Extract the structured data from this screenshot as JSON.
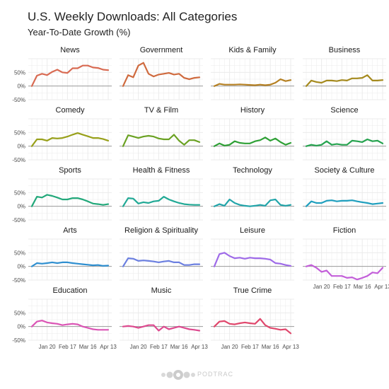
{
  "title": "U.S. Weekly Downloads: All Categories",
  "subtitle": "Year-To-Date Growth (%)",
  "logo_text": "PODTRAC",
  "colors": {
    "grid": "#ebebeb",
    "zero_line": "#9a9a9a",
    "axis_text": "#4d4d4d",
    "panel_title": "#1a1a1a",
    "logo": "#c9c9c9"
  },
  "chart_data": {
    "type": "line",
    "facet_layout": "4 columns, 5 rows (last row 3 panels)",
    "y_ticks": [
      50,
      0,
      -50
    ],
    "y_tick_labels": [
      "50%",
      "0%",
      "-50%"
    ],
    "ylim": [
      -50,
      100
    ],
    "x_tick_labels": [
      "Jan 20",
      "Feb 17",
      "Mar 16",
      "Apr 13"
    ],
    "grid": true,
    "x_weeks": 16,
    "panels": [
      {
        "name": "News",
        "color": "#d86a52",
        "values": [
          0,
          38,
          45,
          40,
          52,
          60,
          50,
          48,
          65,
          65,
          75,
          75,
          68,
          66,
          60,
          58
        ],
        "show_x_axis": false
      },
      {
        "name": "Government",
        "color": "#cf6a3e",
        "values": [
          0,
          40,
          32,
          75,
          85,
          45,
          35,
          42,
          45,
          48,
          42,
          45,
          30,
          25,
          30,
          32
        ],
        "show_x_axis": false
      },
      {
        "name": "Kids & Family",
        "color": "#b58022",
        "values": [
          0,
          8,
          5,
          5,
          5,
          6,
          5,
          4,
          3,
          5,
          3,
          5,
          12,
          25,
          18,
          22
        ],
        "show_x_axis": false
      },
      {
        "name": "Business",
        "color": "#a58a1e",
        "values": [
          0,
          20,
          15,
          12,
          20,
          20,
          18,
          22,
          20,
          28,
          28,
          30,
          40,
          20,
          20,
          22
        ],
        "show_x_axis": false
      },
      {
        "name": "Comedy",
        "color": "#98a01a",
        "values": [
          0,
          25,
          25,
          20,
          30,
          28,
          30,
          35,
          42,
          48,
          42,
          36,
          30,
          30,
          26,
          20
        ],
        "show_x_axis": false
      },
      {
        "name": "TV & Film",
        "color": "#6aa122",
        "values": [
          0,
          40,
          35,
          30,
          35,
          38,
          35,
          28,
          25,
          25,
          42,
          20,
          5,
          22,
          22,
          15
        ],
        "show_x_axis": false
      },
      {
        "name": "History",
        "color": "#2ea035",
        "values": [
          0,
          10,
          2,
          5,
          18,
          12,
          10,
          10,
          18,
          22,
          32,
          20,
          28,
          15,
          5,
          12
        ],
        "show_x_axis": false
      },
      {
        "name": "Science",
        "color": "#26a34f",
        "values": [
          0,
          5,
          2,
          5,
          18,
          5,
          8,
          5,
          5,
          20,
          18,
          15,
          25,
          18,
          20,
          10
        ],
        "show_x_axis": false
      },
      {
        "name": "Sports",
        "color": "#22a87a",
        "values": [
          0,
          35,
          32,
          42,
          38,
          32,
          25,
          25,
          30,
          30,
          25,
          18,
          10,
          8,
          5,
          8
        ],
        "show_x_axis": false
      },
      {
        "name": "Health & Fitness",
        "color": "#21a995",
        "values": [
          0,
          30,
          28,
          10,
          15,
          12,
          18,
          20,
          35,
          25,
          18,
          12,
          8,
          6,
          5,
          5
        ],
        "show_x_axis": false
      },
      {
        "name": "Technology",
        "color": "#22a5aa",
        "values": [
          0,
          8,
          2,
          25,
          12,
          5,
          2,
          0,
          2,
          5,
          2,
          22,
          25,
          5,
          2,
          5
        ],
        "show_x_axis": false
      },
      {
        "name": "Society & Culture",
        "color": "#1f9fbe",
        "values": [
          0,
          18,
          12,
          12,
          20,
          22,
          18,
          20,
          20,
          22,
          18,
          15,
          12,
          8,
          10,
          12
        ],
        "show_x_axis": false
      },
      {
        "name": "Arts",
        "color": "#2f8fd0",
        "values": [
          0,
          12,
          10,
          12,
          15,
          12,
          15,
          15,
          12,
          10,
          8,
          6,
          4,
          5,
          2,
          3
        ],
        "show_x_axis": false
      },
      {
        "name": "Religion & Spirituality",
        "color": "#6b7fe0",
        "values": [
          0,
          30,
          28,
          20,
          22,
          20,
          18,
          15,
          18,
          20,
          15,
          15,
          5,
          5,
          8,
          8
        ],
        "show_x_axis": false
      },
      {
        "name": "Leisure",
        "color": "#9e6ae8",
        "values": [
          0,
          45,
          50,
          38,
          30,
          32,
          28,
          32,
          30,
          30,
          28,
          25,
          12,
          10,
          5,
          2
        ],
        "show_x_axis": false
      },
      {
        "name": "Fiction",
        "color": "#c35fd9",
        "values": [
          0,
          5,
          -5,
          -20,
          -15,
          -35,
          -35,
          -35,
          -42,
          -40,
          -48,
          -42,
          -35,
          -22,
          -25,
          -5
        ],
        "show_x_axis": true
      },
      {
        "name": "Education",
        "color": "#db55b5",
        "values": [
          0,
          18,
          22,
          15,
          12,
          10,
          5,
          8,
          10,
          8,
          0,
          -5,
          -10,
          -12,
          -12,
          -12
        ],
        "show_x_axis": true
      },
      {
        "name": "Music",
        "color": "#dd4a8f",
        "values": [
          0,
          2,
          0,
          -5,
          0,
          5,
          5,
          -15,
          0,
          -10,
          -5,
          0,
          -5,
          -10,
          -12,
          -15
        ],
        "show_x_axis": true
      },
      {
        "name": "True Crime",
        "color": "#e0476c",
        "values": [
          0,
          18,
          20,
          10,
          8,
          12,
          15,
          12,
          10,
          28,
          5,
          -5,
          -8,
          -12,
          -10,
          -25
        ],
        "show_x_axis": true
      }
    ]
  }
}
